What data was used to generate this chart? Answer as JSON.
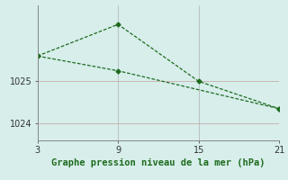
{
  "line1_x": [
    3,
    9,
    15,
    21
  ],
  "line1_y": [
    1025.6,
    1026.35,
    1025.0,
    1024.35
  ],
  "line2_x": [
    3,
    9,
    21
  ],
  "line2_y": [
    1025.6,
    1025.25,
    1024.35
  ],
  "line_color": "#1e6b1e",
  "bg_color": "#d7eeeb",
  "grid_color": "#b0b0b0",
  "grid_color_h": "#c8a0a0",
  "xlabel": "Graphe pression niveau de la mer (hPa)",
  "xlabel_color": "#1e6b1e",
  "xticks": [
    3,
    9,
    15,
    21
  ],
  "yticks": [
    1024,
    1025
  ],
  "xlim": [
    3,
    21
  ],
  "ylim": [
    1023.6,
    1026.8
  ],
  "marker": "D",
  "markersize": 2.5,
  "linewidth": 0.9,
  "xlabel_fontsize": 7.5,
  "tick_fontsize": 7
}
